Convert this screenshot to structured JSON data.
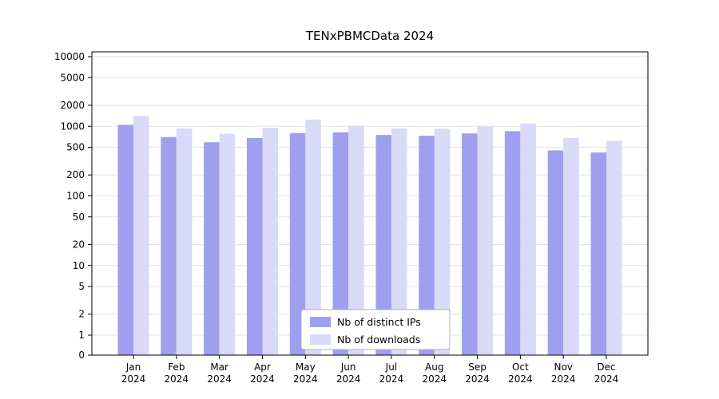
{
  "title": "TENxPBMCData 2024",
  "colors": {
    "distinct_ips": "#9f9ff0",
    "downloads": "#d9d9f8",
    "grid": "#e2e2e2",
    "axis": "#000000",
    "legend_border": "#b0b0b0",
    "background": "#ffffff"
  },
  "chart_data": {
    "type": "bar",
    "title": "TENxPBMCData 2024",
    "x_tick_line1": [
      "Jan",
      "Feb",
      "Mar",
      "Apr",
      "May",
      "Jun",
      "Jul",
      "Aug",
      "Sep",
      "Oct",
      "Nov",
      "Dec"
    ],
    "x_tick_line2": "2024",
    "y_scale": "symlog",
    "y_ticks": [
      0,
      1,
      2,
      5,
      10,
      20,
      50,
      100,
      200,
      500,
      1000,
      2000,
      5000,
      10000
    ],
    "ylim": [
      0,
      12000
    ],
    "grid": "horizontal",
    "legend_position": "lower center",
    "series": [
      {
        "name": "Nb of distinct IPs",
        "values": [
          1050,
          700,
          590,
          680,
          800,
          820,
          750,
          730,
          790,
          850,
          450,
          420
        ]
      },
      {
        "name": "Nb of downloads",
        "values": [
          1400,
          930,
          780,
          950,
          1250,
          1020,
          930,
          920,
          1000,
          1100,
          680,
          620
        ]
      }
    ]
  }
}
